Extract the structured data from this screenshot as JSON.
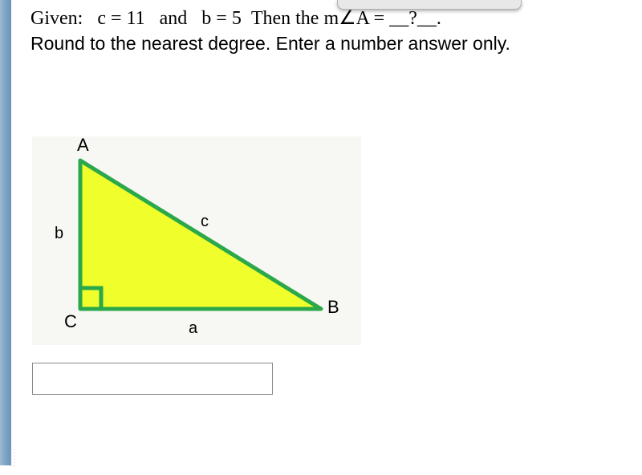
{
  "problem": {
    "given_prefix": "Given:",
    "c_eq": "c = 11",
    "and": "and",
    "b_eq": "b = 5",
    "then": "Then the m",
    "angle_part": "∠A =",
    "blank": "__?__.",
    "line2": "Round to the nearest degree. Enter a number answer only."
  },
  "triangle": {
    "labels": {
      "A": "A",
      "B": "B",
      "C": "C",
      "a": "a",
      "b": "b",
      "c": "c"
    },
    "vertices": {
      "C": [
        60,
        215
      ],
      "A": [
        60,
        30
      ],
      "B": [
        360,
        215
      ]
    },
    "right_angle_at": "C",
    "fill_color": "#f0ff2b",
    "stroke_color": "#2aa84a",
    "stroke_width": 5,
    "right_angle_box_size": 26,
    "label_positions": {
      "A": [
        56,
        -2
      ],
      "B": [
        368,
        200
      ],
      "C": [
        40,
        218
      ],
      "a": [
        195,
        228
      ],
      "b": [
        28,
        110
      ],
      "c": [
        210,
        95
      ]
    },
    "diagram_bg": "#f7f7f4",
    "label_color": "#000000",
    "label_fontsize": 22
  },
  "answer_input": {
    "value": "",
    "placeholder": ""
  },
  "colors": {
    "page_bg": "#ffffff",
    "left_bar_gradient": [
      "#9bb8d3",
      "#6a93ba"
    ],
    "box_border": "#8a8a8a"
  },
  "top_tab": {
    "bg": "#e8e8e8",
    "border": "#b0b0b0"
  }
}
